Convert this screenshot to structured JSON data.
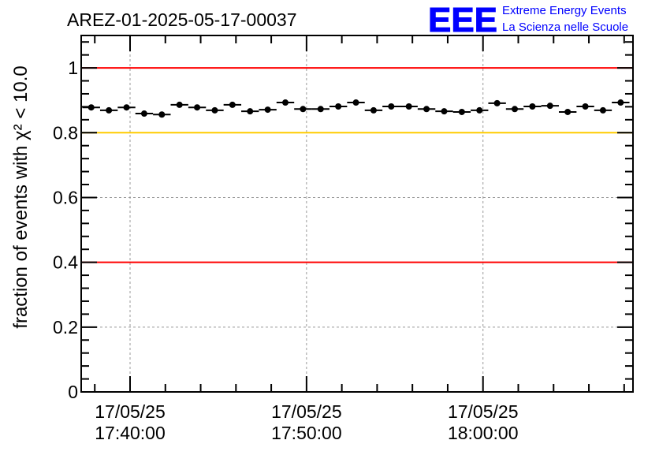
{
  "chart_data": {
    "type": "scatter",
    "title": "AREZ-01-2025-05-17-00037",
    "ylabel": "fraction of events with χ² < 10.0",
    "xlabel": "",
    "x_unit": "minutes after 17/05/25 17:40:00",
    "xlim": [
      -2.77,
      28.5
    ],
    "ylim": [
      0,
      1.1
    ],
    "grid": true,
    "y_ticks": [
      0,
      0.2,
      0.4,
      0.6,
      0.8,
      1
    ],
    "y_tick_labels": [
      "0",
      "0.2",
      "0.4",
      "0.6",
      "0.8",
      "1"
    ],
    "x_ticks": [
      0,
      10,
      20
    ],
    "x_tick_labels": [
      {
        "date": "17/05/25",
        "time": "17:40:00"
      },
      {
        "date": "17/05/25",
        "time": "17:50:00"
      },
      {
        "date": "17/05/25",
        "time": "18:00:00"
      }
    ],
    "bin_width_minutes": 1,
    "reference_lines": [
      {
        "y": 1.0,
        "color": "#ff0000"
      },
      {
        "y": 0.8,
        "color": "#ffcc00"
      },
      {
        "y": 0.4,
        "color": "#ff0000"
      }
    ],
    "series": [
      {
        "name": "fraction",
        "x": [
          -2.2,
          -1.2,
          -0.2,
          0.8,
          1.8,
          2.8,
          3.8,
          4.8,
          5.8,
          6.8,
          7.8,
          8.8,
          9.8,
          10.8,
          11.8,
          12.8,
          13.8,
          14.8,
          15.8,
          16.8,
          17.8,
          18.8,
          19.8,
          20.8,
          21.8,
          22.8,
          23.8,
          24.8,
          25.8,
          26.8,
          27.8
        ],
        "y": [
          0.878,
          0.869,
          0.878,
          0.859,
          0.856,
          0.886,
          0.878,
          0.869,
          0.886,
          0.866,
          0.871,
          0.893,
          0.873,
          0.873,
          0.881,
          0.893,
          0.869,
          0.881,
          0.881,
          0.873,
          0.866,
          0.864,
          0.869,
          0.891,
          0.873,
          0.881,
          0.883,
          0.864,
          0.881,
          0.869,
          0.893
        ]
      }
    ]
  },
  "logo": {
    "mark": "EEE",
    "line1": "Extreme Energy Events",
    "line2": "La Scienza nelle Scuole",
    "color": "#0000ff"
  }
}
